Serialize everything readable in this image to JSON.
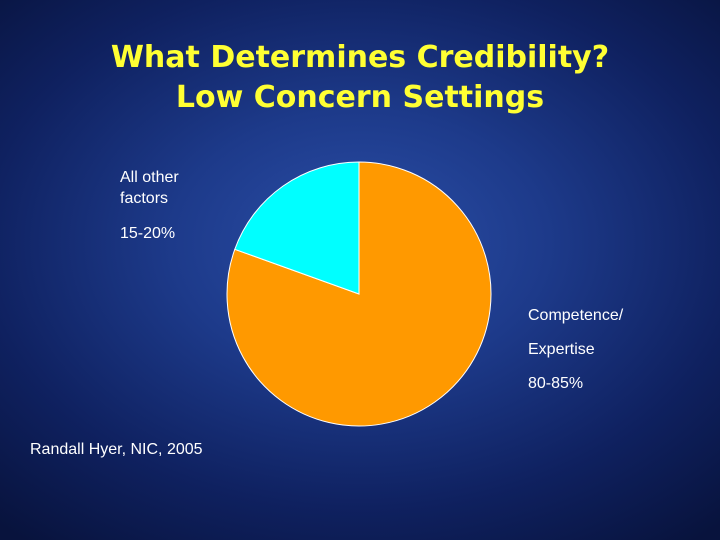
{
  "slide": {
    "title_line1": "What Determines Credibility?",
    "title_line2": "Low Concern Settings",
    "source": "Randall Hyer, NIC, 2005"
  },
  "chart_data": {
    "type": "pie",
    "slices": [
      {
        "label_line1": "All other",
        "label_line2": "factors",
        "value_text": "15-20%",
        "value": 19.5,
        "color": "#00ffff"
      },
      {
        "label_line1": "Competence/",
        "label_line2": "Expertise",
        "value_text": "80-85%",
        "value": 80.5,
        "color": "#ff9900"
      }
    ],
    "colors": {
      "title": "#ffff33",
      "text": "#ffffff",
      "slice_border": "#ffffff"
    }
  }
}
